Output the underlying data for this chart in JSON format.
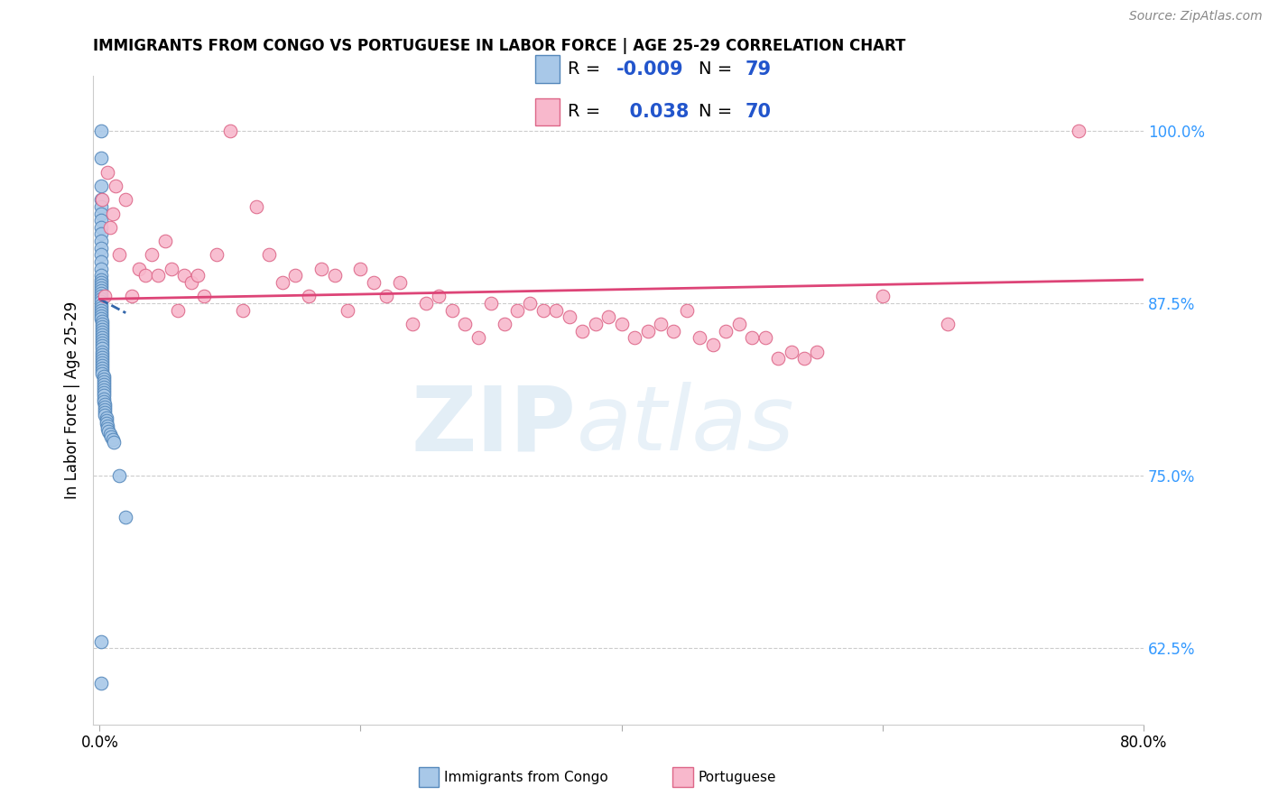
{
  "title": "IMMIGRANTS FROM CONGO VS PORTUGUESE IN LABOR FORCE | AGE 25-29 CORRELATION CHART",
  "source": "Source: ZipAtlas.com",
  "ylabel": "In Labor Force | Age 25-29",
  "ytick_labels": [
    "62.5%",
    "75.0%",
    "87.5%",
    "100.0%"
  ],
  "ytick_values": [
    0.625,
    0.75,
    0.875,
    1.0
  ],
  "xlim": [
    -0.005,
    0.8
  ],
  "ylim": [
    0.57,
    1.04
  ],
  "congo_color": "#a8c8e8",
  "congo_edge_color": "#5588bb",
  "portuguese_color": "#f8b8cc",
  "portuguese_edge_color": "#dd6688",
  "congo_line_color": "#3366aa",
  "portuguese_line_color": "#dd4477",
  "right_ytick_color": "#3399ff",
  "grid_color": "#cccccc",
  "background_color": "#ffffff",
  "congo_x": [
    0.001,
    0.001,
    0.001,
    0.001,
    0.001,
    0.001,
    0.001,
    0.001,
    0.001,
    0.001,
    0.001,
    0.001,
    0.001,
    0.001,
    0.001,
    0.001,
    0.001,
    0.001,
    0.001,
    0.001,
    0.001,
    0.001,
    0.001,
    0.001,
    0.001,
    0.001,
    0.001,
    0.001,
    0.001,
    0.001,
    0.002,
    0.002,
    0.002,
    0.002,
    0.002,
    0.002,
    0.002,
    0.002,
    0.002,
    0.002,
    0.002,
    0.002,
    0.002,
    0.002,
    0.002,
    0.002,
    0.002,
    0.002,
    0.002,
    0.002,
    0.003,
    0.003,
    0.003,
    0.003,
    0.003,
    0.003,
    0.003,
    0.003,
    0.003,
    0.003,
    0.004,
    0.004,
    0.004,
    0.004,
    0.004,
    0.005,
    0.005,
    0.005,
    0.006,
    0.006,
    0.007,
    0.008,
    0.009,
    0.01,
    0.011,
    0.015,
    0.02,
    0.001,
    0.001
  ],
  "congo_y": [
    1.0,
    0.98,
    0.96,
    0.95,
    0.945,
    0.94,
    0.935,
    0.93,
    0.925,
    0.92,
    0.915,
    0.91,
    0.905,
    0.9,
    0.895,
    0.892,
    0.89,
    0.888,
    0.886,
    0.884,
    0.882,
    0.88,
    0.878,
    0.876,
    0.874,
    0.872,
    0.87,
    0.868,
    0.866,
    0.864,
    0.862,
    0.86,
    0.858,
    0.856,
    0.854,
    0.852,
    0.85,
    0.848,
    0.846,
    0.844,
    0.842,
    0.84,
    0.838,
    0.836,
    0.834,
    0.832,
    0.83,
    0.828,
    0.826,
    0.824,
    0.822,
    0.82,
    0.818,
    0.816,
    0.814,
    0.812,
    0.81,
    0.808,
    0.806,
    0.804,
    0.802,
    0.8,
    0.798,
    0.796,
    0.794,
    0.792,
    0.79,
    0.788,
    0.786,
    0.784,
    0.782,
    0.78,
    0.778,
    0.776,
    0.774,
    0.75,
    0.72,
    0.63,
    0.6
  ],
  "portuguese_x": [
    0.002,
    0.004,
    0.006,
    0.008,
    0.01,
    0.012,
    0.015,
    0.02,
    0.025,
    0.03,
    0.035,
    0.04,
    0.045,
    0.05,
    0.055,
    0.06,
    0.065,
    0.07,
    0.075,
    0.08,
    0.09,
    0.1,
    0.11,
    0.12,
    0.13,
    0.14,
    0.15,
    0.16,
    0.17,
    0.18,
    0.19,
    0.2,
    0.21,
    0.22,
    0.23,
    0.24,
    0.25,
    0.26,
    0.27,
    0.28,
    0.29,
    0.3,
    0.31,
    0.32,
    0.33,
    0.34,
    0.35,
    0.36,
    0.37,
    0.38,
    0.39,
    0.4,
    0.41,
    0.42,
    0.43,
    0.44,
    0.45,
    0.46,
    0.47,
    0.48,
    0.49,
    0.5,
    0.51,
    0.52,
    0.53,
    0.54,
    0.55,
    0.6,
    0.65,
    0.75
  ],
  "portuguese_y": [
    0.95,
    0.88,
    0.97,
    0.93,
    0.94,
    0.96,
    0.91,
    0.95,
    0.88,
    0.9,
    0.895,
    0.91,
    0.895,
    0.92,
    0.9,
    0.87,
    0.895,
    0.89,
    0.895,
    0.88,
    0.91,
    1.0,
    0.87,
    0.945,
    0.91,
    0.89,
    0.895,
    0.88,
    0.9,
    0.895,
    0.87,
    0.9,
    0.89,
    0.88,
    0.89,
    0.86,
    0.875,
    0.88,
    0.87,
    0.86,
    0.85,
    0.875,
    0.86,
    0.87,
    0.875,
    0.87,
    0.87,
    0.865,
    0.855,
    0.86,
    0.865,
    0.86,
    0.85,
    0.855,
    0.86,
    0.855,
    0.87,
    0.85,
    0.845,
    0.855,
    0.86,
    0.85,
    0.85,
    0.835,
    0.84,
    0.835,
    0.84,
    0.88,
    0.86,
    1.0
  ],
  "congo_trend_x": [
    0.0,
    0.02
  ],
  "congo_trend_y": [
    0.878,
    0.868
  ],
  "portuguese_trend_x": [
    0.0,
    0.8
  ],
  "portuguese_trend_y": [
    0.878,
    0.892
  ]
}
